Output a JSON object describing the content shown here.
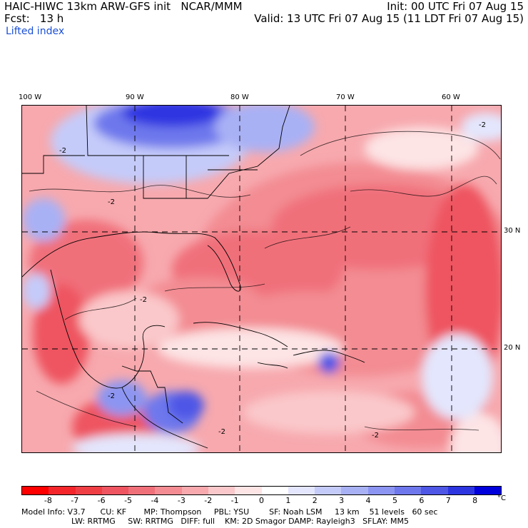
{
  "header": {
    "model_title": "HAIC-HIWC 13km ARW-GFS init   NCAR/MMM",
    "forecast": "Fcst:   13 h",
    "field": "Lifted index",
    "init": "Init: 00 UTC Fri 07 Aug 15",
    "valid": "Valid: 13 UTC Fri 07 Aug 15 (11 LDT Fri 07 Aug 15)"
  },
  "map": {
    "longitude_labels": [
      "100 W",
      "90 W",
      "80 W",
      "70 W",
      "60 W"
    ],
    "latitude_labels": [
      "30 N",
      "20 N"
    ],
    "contour_label": "-2"
  },
  "colorbar": {
    "ticks": [
      "-8",
      "-7",
      "-6",
      "-5",
      "-4",
      "-3",
      "-2",
      "-1",
      "0",
      "1",
      "2",
      "3",
      "4",
      "5",
      "6",
      "7",
      "8"
    ],
    "unit": "°C",
    "colors": [
      "#ff0000",
      "#f4262b",
      "#f03e45",
      "#ee5560",
      "#f0707a",
      "#f38c93",
      "#f7a9ae",
      "#fac8ca",
      "#fde4e5",
      "#ffffff",
      "#e3e6fd",
      "#c5cbf9",
      "#a9b1f5",
      "#8c95f1",
      "#6e78ec",
      "#4e57e6",
      "#2d35e1",
      "#0000dc"
    ]
  },
  "footer": {
    "line1": "Model Info: V3.7      CU: KF       MP: Thompson     PBL: YSU        SF: Noah LSM     13 km    51 levels   60 sec",
    "line2": "LW: RRTMG     SW: RRTMG   DIFF: full    KM: 2D Smagor DAMP: Rayleigh3   SFLAY: MM5"
  }
}
